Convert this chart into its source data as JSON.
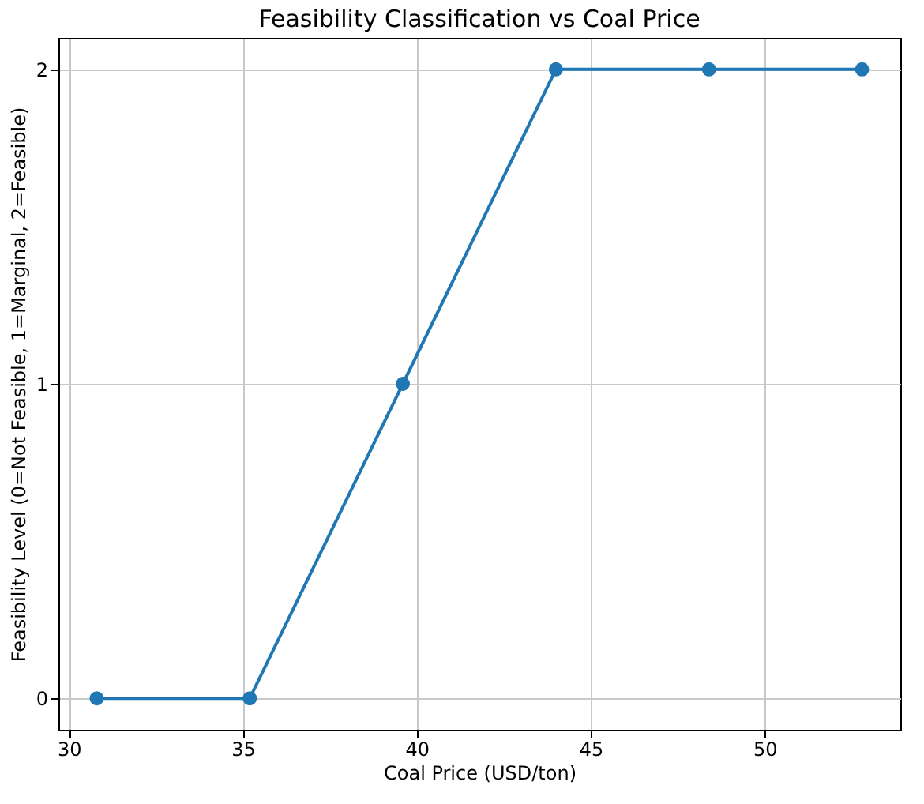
{
  "chart_data": {
    "type": "line",
    "title": "Feasibility Classification vs Coal Price",
    "xlabel": "Coal Price (USD/ton)",
    "ylabel": "Feasibility Level (0=Not Feasible, 1=Marginal, 2=Feasible)",
    "x": [
      30.8,
      35.2,
      39.6,
      44.0,
      48.4,
      52.8
    ],
    "series": [
      {
        "color": "#1f77b4",
        "values": [
          0,
          0,
          1,
          2,
          2,
          2
        ]
      }
    ],
    "xlim": [
      29.7,
      53.9
    ],
    "xticks": [
      30,
      35,
      40,
      45,
      50
    ],
    "ylim": [
      -0.1,
      2.1
    ],
    "yticks": [
      0,
      1,
      2
    ],
    "grid": true,
    "marker": "circle",
    "line_style": "solid"
  }
}
